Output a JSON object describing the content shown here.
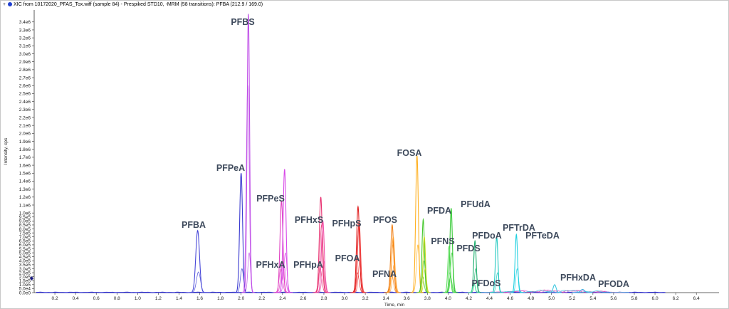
{
  "window": {
    "title": "XIC from 10172020_PFAS_Tox.wiff (sample 84) - Prespiked STD10, -MRM (58 transitions): PFBA (212.9 / 169.0)"
  },
  "chart_data": {
    "type": "line",
    "title": "XIC from 10172020_PFAS_Tox.wiff (sample 84) - Prespiked STD10, -MRM (58 transitions): PFBA (212.9 / 169.0)",
    "xlabel": "Time, min",
    "ylabel": "Intensity, cps",
    "xlim": [
      0,
      6.55
    ],
    "ylim": [
      0,
      3550000.0
    ],
    "grid": false,
    "x_ticks": [
      0.2,
      0.4,
      0.6,
      0.8,
      1.0,
      1.2,
      1.4,
      1.6,
      1.8,
      2.0,
      2.2,
      2.4,
      2.6,
      2.8,
      3.0,
      3.2,
      3.4,
      3.6,
      3.8,
      4.0,
      4.2,
      4.4,
      4.6,
      4.8,
      5.0,
      5.2,
      5.4,
      5.6,
      5.8,
      6.0,
      6.2,
      6.4
    ],
    "x_tick_labels": [
      "0.2",
      "0.4",
      "0.6",
      "0.8",
      "1.0",
      "1.2",
      "1.4",
      "1.6",
      "1.8",
      "2.0",
      "2.2",
      "2.4",
      "2.6",
      "2.8",
      "3.0",
      "3.2",
      "3.4",
      "3.6",
      "3.8",
      "4.0",
      "4.2",
      "4.4",
      "4.6",
      "4.8",
      "5.0",
      "5.2",
      "5.4",
      "5.6",
      "5.8",
      "6.0",
      "6.2",
      "6.4"
    ],
    "y_ticks": [
      0,
      50000,
      100000,
      150000,
      200000,
      250000,
      300000,
      350000,
      400000,
      450000,
      500000,
      550000,
      600000,
      650000,
      700000,
      750000,
      800000,
      850000,
      900000,
      950000,
      1000000,
      1100000,
      1200000,
      1300000,
      1400000,
      1500000,
      1600000,
      1700000,
      1800000,
      1900000,
      2000000,
      2100000,
      2200000,
      2300000,
      2400000,
      2500000,
      2600000,
      2700000,
      2800000,
      2900000,
      3000000,
      3100000,
      3200000,
      3300000,
      3400000
    ],
    "y_tick_labels": [
      "0.0e0",
      "5.0e4",
      "1.0e5",
      "1.5e5",
      "2.0e5",
      "2.5e5",
      "3.0e5",
      "3.5e5",
      "4.0e5",
      "4.5e5",
      "5.0e5",
      "5.5e5",
      "6.0e5",
      "6.5e5",
      "7.0e5",
      "7.5e5",
      "8.0e5",
      "8.5e5",
      "9.0e5",
      "9.5e5",
      "1.0e6",
      "1.1e6",
      "1.2e6",
      "1.3e6",
      "1.4e6",
      "1.5e6",
      "1.6e6",
      "1.7e6",
      "1.8e6",
      "1.9e6",
      "2.0e6",
      "2.1e6",
      "2.2e6",
      "2.3e6",
      "2.4e6",
      "2.5e6",
      "2.6e6",
      "2.7e6",
      "2.8e6",
      "2.9e6",
      "3.0e6",
      "3.1e6",
      "3.2e6",
      "3.3e6",
      "3.4e6"
    ],
    "peaks": [
      {
        "label": "PFBA",
        "rt": 1.58,
        "height": 780000,
        "color": "#4848d8",
        "secondary": [
          260000
        ],
        "width": 0.018
      },
      {
        "label": "PFPeA",
        "rt": 2.0,
        "height": 1500000,
        "color": "#3a3ad0",
        "secondary": [
          300000
        ],
        "width": 0.014
      },
      {
        "label": "PFBS",
        "rt": 2.07,
        "height": 3500000,
        "color": "#c050e8",
        "secondary": [
          500000,
          2600000
        ],
        "width": 0.012
      },
      {
        "label": "PFHxA",
        "rt": 2.39,
        "height": 1150000,
        "color": "#e040c0",
        "secondary": [
          400000,
          300000
        ],
        "width": 0.014
      },
      {
        "label": "PFPeS",
        "rt": 2.42,
        "height": 1550000,
        "color": "#d848e8",
        "secondary": [
          500000,
          350000
        ],
        "width": 0.014
      },
      {
        "label": "PFHpA",
        "rt": 2.77,
        "height": 1200000,
        "color": "#e83070",
        "secondary": [
          850000,
          300000
        ],
        "width": 0.014
      },
      {
        "label": "PFHxS",
        "rt": 2.79,
        "height": 900000,
        "color": "#f050a8",
        "secondary": [
          400000
        ],
        "width": 0.014
      },
      {
        "label": "PFOA",
        "rt": 3.13,
        "height": 1080000,
        "color": "#e02020",
        "secondary": [
          850000,
          250000
        ],
        "width": 0.014
      },
      {
        "label": "PFHpS",
        "rt": 3.14,
        "height": 900000,
        "color": "#f04040",
        "secondary": [
          400000
        ],
        "width": 0.014
      },
      {
        "label": "PFNA",
        "rt": 3.46,
        "height": 850000,
        "color": "#f08018",
        "secondary": [
          600000,
          250000
        ],
        "width": 0.014
      },
      {
        "label": "PFOS",
        "rt": 3.47,
        "height": 700000,
        "color": "#ffa030",
        "secondary": [
          350000
        ],
        "width": 0.014
      },
      {
        "label": "FOSA",
        "rt": 3.7,
        "height": 1720000,
        "color": "#ffb020",
        "secondary": [
          600000
        ],
        "width": 0.013
      },
      {
        "label": "PFDA",
        "rt": 3.76,
        "height": 920000,
        "color": "#48c830",
        "secondary": [
          400000,
          200000
        ],
        "width": 0.012
      },
      {
        "label": "PFNS",
        "rt": 3.77,
        "height": 700000,
        "color": "#c0d820",
        "secondary": [
          300000
        ],
        "width": 0.012
      },
      {
        "label": "PFUdA",
        "rt": 4.03,
        "height": 1060000,
        "color": "#30c830",
        "secondary": [
          500000,
          200000
        ],
        "width": 0.012
      },
      {
        "label": "PFDS",
        "rt": 4.01,
        "height": 580000,
        "color": "#60e060",
        "secondary": [
          250000
        ],
        "width": 0.012
      },
      {
        "label": "PFDoA",
        "rt": 4.26,
        "height": 650000,
        "color": "#20b070",
        "secondary": [
          300000
        ],
        "width": 0.012
      },
      {
        "label": "PFDoS",
        "rt": 4.25,
        "height": 120000,
        "color": "#40d8a0",
        "secondary": [],
        "width": 0.012
      },
      {
        "label": "PFTrDA",
        "rt": 4.47,
        "height": 700000,
        "color": "#20c8c0",
        "secondary": [
          250000
        ],
        "width": 0.012
      },
      {
        "label": "PFTeDA",
        "rt": 4.66,
        "height": 730000,
        "color": "#20d0e0",
        "secondary": [
          300000
        ],
        "width": 0.012
      },
      {
        "label": "PFHxDA",
        "rt": 5.03,
        "height": 100000,
        "color": "#40c8e0",
        "secondary": [],
        "width": 0.014
      },
      {
        "label": "PFODA",
        "rt": 5.3,
        "height": 40000,
        "color": "#40b0e0",
        "secondary": [],
        "width": 0.02
      }
    ],
    "labels": [
      {
        "text": "PFBA"
      },
      {
        "text": "PFPeA"
      },
      {
        "text": "PFBS"
      },
      {
        "text": "PFPeS"
      },
      {
        "text": "PFHxA"
      },
      {
        "text": "PFHxS"
      },
      {
        "text": "PFHpA"
      },
      {
        "text": "PFHpS"
      },
      {
        "text": "PFOA"
      },
      {
        "text": "PFOS"
      },
      {
        "text": "PFNA"
      },
      {
        "text": "FOSA"
      },
      {
        "text": "PFDA"
      },
      {
        "text": "PFNS"
      },
      {
        "text": "PFUdA"
      },
      {
        "text": "PFDS"
      },
      {
        "text": "PFDoA"
      },
      {
        "text": "PFDoS"
      },
      {
        "text": "PFTrDA"
      },
      {
        "text": "PFTeDA"
      },
      {
        "text": "PFHxDA"
      },
      {
        "text": "PFODA"
      }
    ],
    "baseline_color": "#2a2ad0"
  }
}
